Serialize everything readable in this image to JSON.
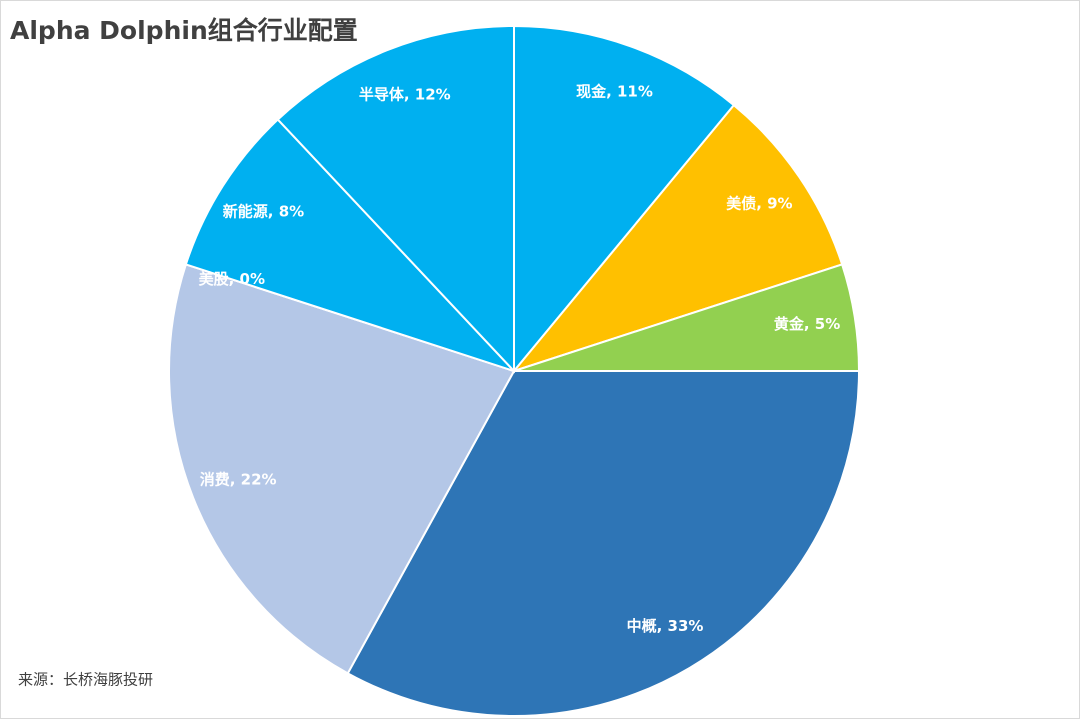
{
  "chart_data": {
    "type": "pie",
    "title": "Alpha Dolphin组合行业配置",
    "source": "来源：长桥海豚投研",
    "values": [
      11,
      9,
      5,
      33,
      22,
      0,
      8,
      12
    ],
    "labels": [
      "现金, 11%",
      "美债, 9%",
      "黄金, 5%",
      "中概, 33%",
      "消费, 22%",
      "美股, 0%",
      "新能源, 8%",
      "半导体, 12%"
    ],
    "colors": [
      "#00b0f0",
      "#ffc000",
      "#92d050",
      "#2e75b6",
      "#b4c7e7",
      "#b4c7e7",
      "#00b0f0",
      "#00b0f0"
    ]
  }
}
